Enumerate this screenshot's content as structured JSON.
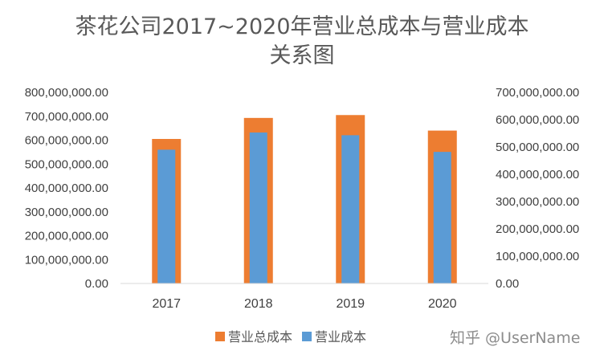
{
  "chart_data": {
    "type": "bar",
    "title_line1": "茶花公司2017~2020年营业总成本与营业成本",
    "title_line2": "关系图",
    "categories": [
      "2017",
      "2018",
      "2019",
      "2020"
    ],
    "series": [
      {
        "name": "营业总成本",
        "axis": "left",
        "color": "#ED7D31",
        "values": [
          605000000,
          693000000,
          705000000,
          640000000
        ]
      },
      {
        "name": "营业成本",
        "axis": "right",
        "color": "#5B9BD5",
        "values": [
          490000000,
          553000000,
          543000000,
          482000000
        ]
      }
    ],
    "y_left": {
      "min": 0,
      "max": 800000000,
      "step": 100000000,
      "ticks": [
        "0.00",
        "100,000,000.00",
        "200,000,000.00",
        "300,000,000.00",
        "400,000,000.00",
        "500,000,000.00",
        "600,000,000.00",
        "700,000,000.00",
        "800,000,000.00"
      ]
    },
    "y_right": {
      "min": 0,
      "max": 700000000,
      "step": 100000000,
      "ticks": [
        "0.00",
        "100,000,000.00",
        "200,000,000.00",
        "300,000,000.00",
        "400,000,000.00",
        "500,000,000.00",
        "600,000,000.00",
        "700,000,000.00"
      ]
    },
    "legend_position": "bottom",
    "grid": false
  },
  "watermark": "知乎 @UserName"
}
